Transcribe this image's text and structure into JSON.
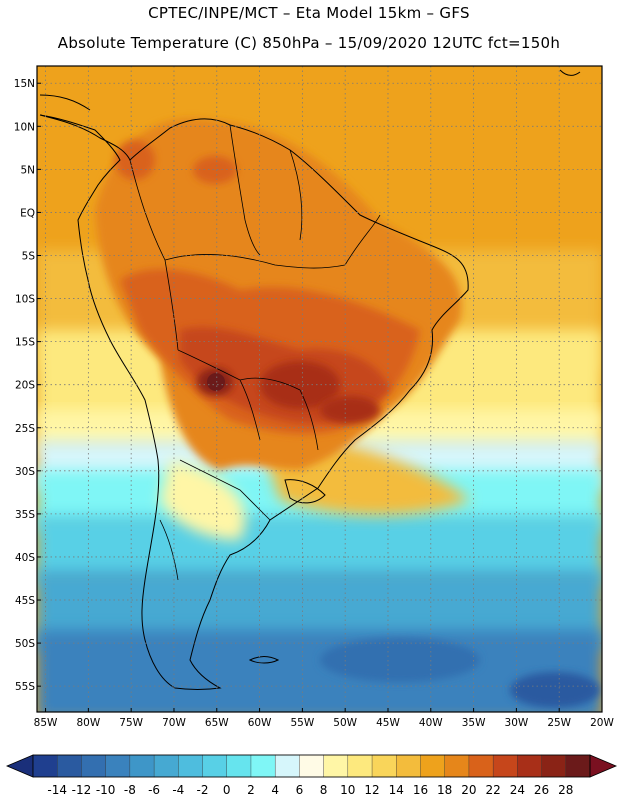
{
  "header": {
    "line1": "CPTEC/INPE/MCT –  Eta Model 15km – GFS",
    "line2": "Absolute Temperature (C) 850hPa – 15/09/2020 12UTC fct=150h"
  },
  "map": {
    "lat_range": [
      -58,
      17
    ],
    "lon_range": [
      -86,
      -20
    ],
    "lat_ticks": [
      "15N",
      "10N",
      "5N",
      "EQ",
      "5S",
      "10S",
      "15S",
      "20S",
      "25S",
      "30S",
      "35S",
      "40S",
      "45S",
      "50S",
      "55S"
    ],
    "lon_ticks": [
      "85W",
      "80W",
      "75W",
      "70W",
      "65W",
      "60W",
      "55W",
      "50W",
      "45W",
      "40W",
      "35W",
      "30W",
      "25W",
      "20W"
    ]
  },
  "colorbar": {
    "labels": [
      "-14",
      "-12",
      "-10",
      "-8",
      "-6",
      "-4",
      "-2",
      "0",
      "2",
      "4",
      "6",
      "8",
      "10",
      "12",
      "14",
      "16",
      "18",
      "20",
      "22",
      "24",
      "26",
      "28"
    ],
    "colors": [
      "#1f3f8f",
      "#2a5aa0",
      "#336fb0",
      "#3a82bd",
      "#3e96c8",
      "#46a9d2",
      "#4ebdde",
      "#58d0e6",
      "#66e4ee",
      "#7ff6f6",
      "#d6f6fb",
      "#fffbe6",
      "#fff6a6",
      "#fde97e",
      "#f9d55a",
      "#f3bc3c",
      "#eea21c",
      "#e6861a",
      "#d9621a",
      "#c6461b",
      "#a82f18",
      "#8a2316",
      "#6b1a1a"
    ],
    "under_color": "#1a2f7a",
    "over_color": "#7a1020"
  }
}
